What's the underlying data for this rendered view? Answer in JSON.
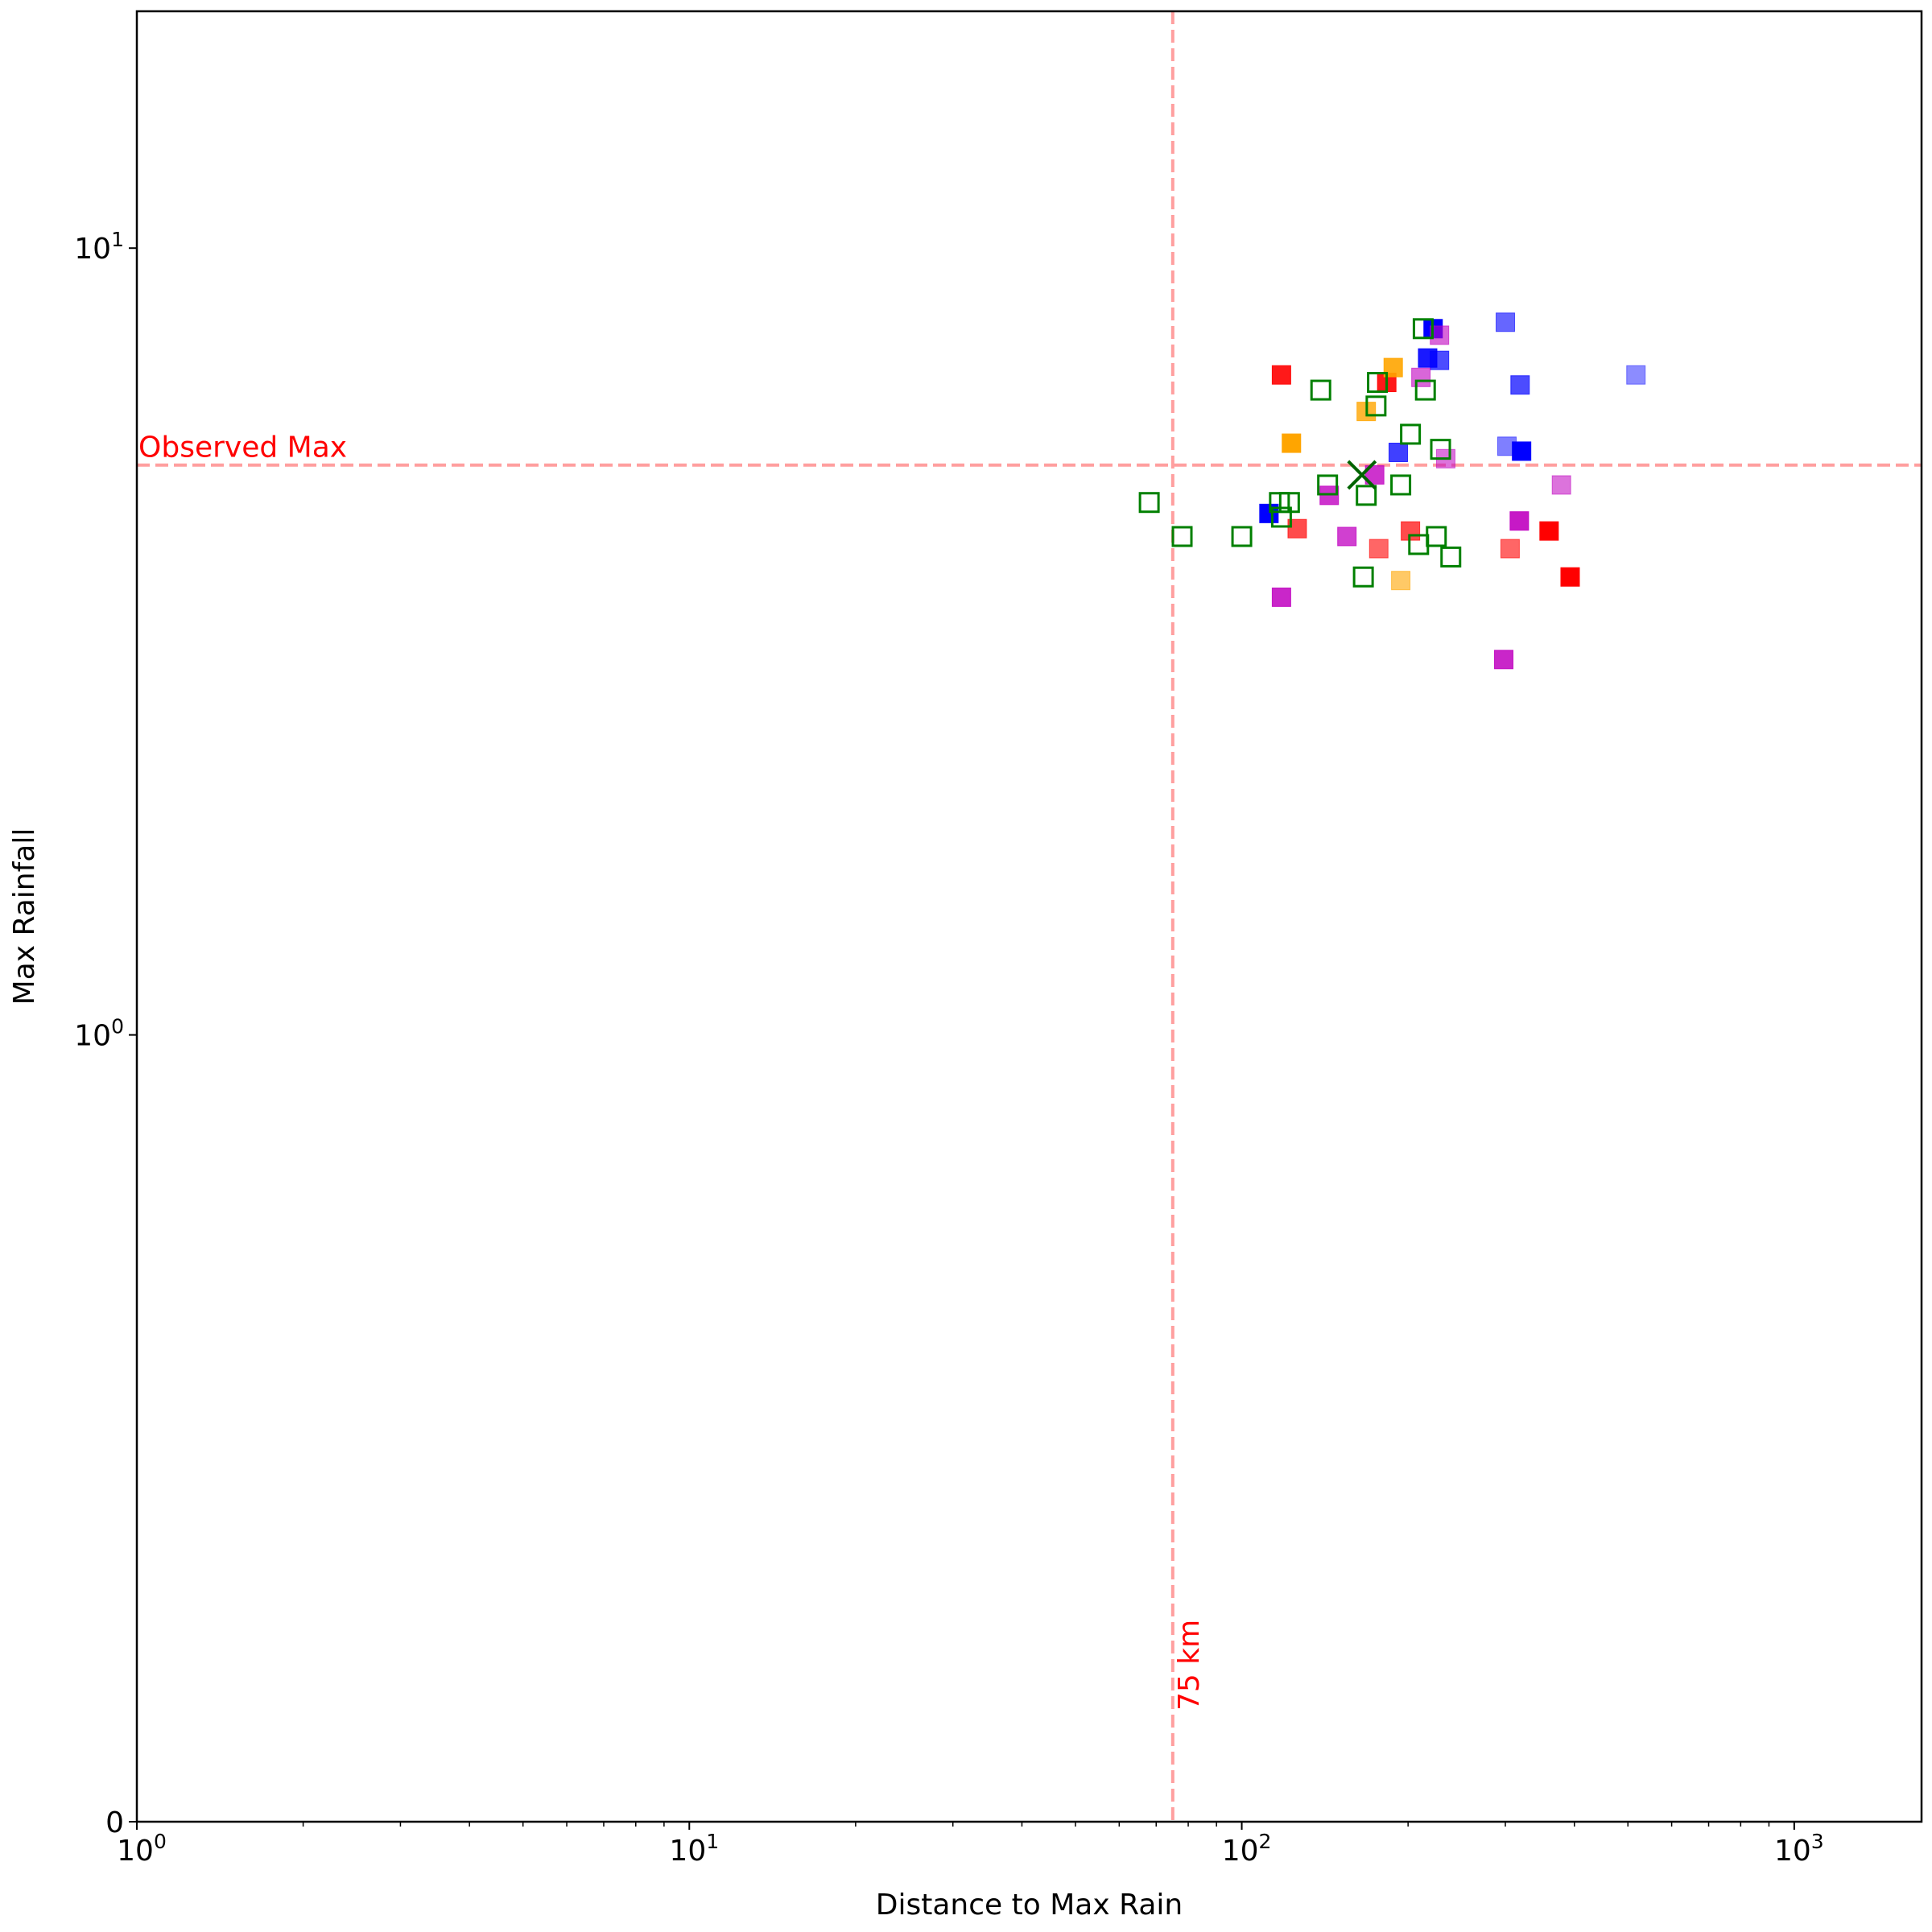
{
  "chart_data": {
    "type": "scatter",
    "xlabel": "Distance to Max Rain",
    "ylabel": "Max Rainfall",
    "x_scale": "log",
    "y_scale": "symlog",
    "xlim": [
      1,
      1700
    ],
    "ylim": [
      0,
      20
    ],
    "x_ticks": [
      {
        "value": 1,
        "label": "10",
        "exp": "0"
      },
      {
        "value": 10,
        "label": "10",
        "exp": "1"
      },
      {
        "value": 100,
        "label": "10",
        "exp": "2"
      },
      {
        "value": 1000,
        "label": "10",
        "exp": "3"
      }
    ],
    "y_ticks": [
      {
        "value": 0,
        "label": "0",
        "exp": ""
      },
      {
        "value": 1,
        "label": "10",
        "exp": "0"
      },
      {
        "value": 10,
        "label": "10",
        "exp": "1"
      }
    ],
    "grid": false,
    "reference_lines": [
      {
        "orientation": "horizontal",
        "value": 5.3,
        "label": "Observed Max",
        "color": "#ff9f9f",
        "label_color": "#ff0000"
      },
      {
        "orientation": "vertical",
        "value": 75,
        "label": "75 km",
        "color": "#ff9f9f",
        "label_color": "#ff0000"
      }
    ],
    "observed_point": {
      "x": 165,
      "y": 5.15,
      "marker": "x",
      "color": "#006400"
    },
    "series": [
      {
        "color": "#ff0000",
        "fill": "filled",
        "points": [
          {
            "x": 118,
            "y": 6.9,
            "alpha": 0.9
          },
          {
            "x": 183,
            "y": 6.75,
            "alpha": 0.9
          },
          {
            "x": 126,
            "y": 4.4,
            "alpha": 0.7
          },
          {
            "x": 202,
            "y": 4.37,
            "alpha": 0.7
          },
          {
            "x": 177,
            "y": 4.15,
            "alpha": 0.6
          },
          {
            "x": 306,
            "y": 4.15,
            "alpha": 0.6
          },
          {
            "x": 360,
            "y": 4.37,
            "alpha": 1.0
          },
          {
            "x": 393,
            "y": 3.82,
            "alpha": 1.0
          }
        ]
      },
      {
        "color": "#ffa500",
        "fill": "filled",
        "points": [
          {
            "x": 188,
            "y": 7.05,
            "alpha": 0.9
          },
          {
            "x": 168,
            "y": 6.2,
            "alpha": 0.8
          },
          {
            "x": 123,
            "y": 5.65,
            "alpha": 1.0
          },
          {
            "x": 194,
            "y": 3.78,
            "alpha": 0.6
          }
        ]
      },
      {
        "color": "#0000ff",
        "fill": "filled",
        "points": [
          {
            "x": 222,
            "y": 7.9,
            "alpha": 1.0
          },
          {
            "x": 217,
            "y": 7.25,
            "alpha": 0.9
          },
          {
            "x": 228,
            "y": 7.2,
            "alpha": 0.7
          },
          {
            "x": 300,
            "y": 8.05,
            "alpha": 0.6
          },
          {
            "x": 319,
            "y": 6.7,
            "alpha": 0.7
          },
          {
            "x": 517,
            "y": 6.9,
            "alpha": 0.45
          },
          {
            "x": 192,
            "y": 5.5,
            "alpha": 0.75
          },
          {
            "x": 302,
            "y": 5.6,
            "alpha": 0.5
          },
          {
            "x": 321,
            "y": 5.52,
            "alpha": 1.0
          },
          {
            "x": 112,
            "y": 4.6,
            "alpha": 1.0
          }
        ]
      },
      {
        "color": "#c000c0",
        "fill": "filled",
        "points": [
          {
            "x": 228,
            "y": 7.75,
            "alpha": 0.6
          },
          {
            "x": 211,
            "y": 6.85,
            "alpha": 0.6
          },
          {
            "x": 234,
            "y": 5.4,
            "alpha": 0.55
          },
          {
            "x": 174,
            "y": 5.15,
            "alpha": 0.8
          },
          {
            "x": 144,
            "y": 4.85,
            "alpha": 0.8
          },
          {
            "x": 379,
            "y": 5.0,
            "alpha": 0.55
          },
          {
            "x": 318,
            "y": 4.5,
            "alpha": 0.9
          },
          {
            "x": 155,
            "y": 4.3,
            "alpha": 0.75
          },
          {
            "x": 118,
            "y": 3.6,
            "alpha": 0.85
          },
          {
            "x": 298,
            "y": 3.0,
            "alpha": 0.85
          }
        ]
      },
      {
        "color": "#008000",
        "fill": "open",
        "points": [
          {
            "x": 213,
            "y": 7.9,
            "alpha": 1.0
          },
          {
            "x": 176,
            "y": 6.75,
            "alpha": 1.0
          },
          {
            "x": 139,
            "y": 6.6,
            "alpha": 1.0
          },
          {
            "x": 215,
            "y": 6.6,
            "alpha": 1.0
          },
          {
            "x": 175,
            "y": 6.3,
            "alpha": 1.0
          },
          {
            "x": 202,
            "y": 5.8,
            "alpha": 1.0
          },
          {
            "x": 229,
            "y": 5.55,
            "alpha": 1.0
          },
          {
            "x": 143,
            "y": 5.0,
            "alpha": 1.0
          },
          {
            "x": 194,
            "y": 5.0,
            "alpha": 1.0
          },
          {
            "x": 168,
            "y": 4.85,
            "alpha": 1.0
          },
          {
            "x": 68,
            "y": 4.75,
            "alpha": 1.0
          },
          {
            "x": 117,
            "y": 4.75,
            "alpha": 1.0
          },
          {
            "x": 122,
            "y": 4.75,
            "alpha": 1.0
          },
          {
            "x": 118,
            "y": 4.55,
            "alpha": 1.0
          },
          {
            "x": 78,
            "y": 4.3,
            "alpha": 1.0
          },
          {
            "x": 100,
            "y": 4.3,
            "alpha": 1.0
          },
          {
            "x": 225,
            "y": 4.3,
            "alpha": 1.0
          },
          {
            "x": 209,
            "y": 4.2,
            "alpha": 1.0
          },
          {
            "x": 239,
            "y": 4.05,
            "alpha": 1.0
          },
          {
            "x": 166,
            "y": 3.82,
            "alpha": 1.0
          }
        ]
      }
    ]
  }
}
